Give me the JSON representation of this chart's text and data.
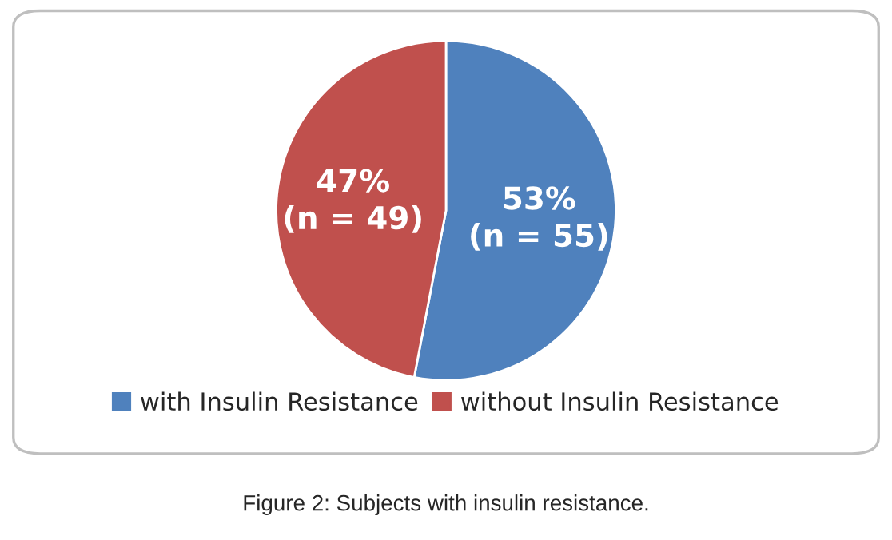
{
  "chart_data": {
    "type": "pie",
    "categories": [
      "with Insulin Resistance",
      "without Insulin Resistance"
    ],
    "values": [
      53,
      47
    ],
    "colors": [
      "#4f81bd",
      "#c0504d"
    ],
    "value_labels": [
      "53%\n(n = 55)",
      "47%\n(n = 49)"
    ],
    "legend": "bottom",
    "annotations": [
      "Figure 2: Subjects with insulin resistance."
    ]
  }
}
